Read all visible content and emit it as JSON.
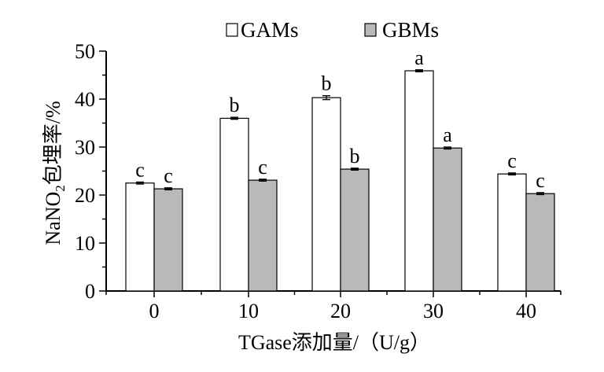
{
  "chart_data": {
    "type": "bar",
    "categories": [
      "0",
      "10",
      "20",
      "30",
      "40"
    ],
    "series": [
      {
        "name": "GAMs",
        "values": [
          22.5,
          36.0,
          40.3,
          45.9,
          24.4
        ],
        "errors": [
          0.2,
          0.2,
          0.4,
          0.2,
          0.2
        ],
        "labels": [
          "c",
          "b",
          "b",
          "a",
          "c"
        ],
        "color": "#ffffff"
      },
      {
        "name": "GBMs",
        "values": [
          21.3,
          23.1,
          25.4,
          29.8,
          20.3
        ],
        "errors": [
          0.2,
          0.2,
          0.2,
          0.2,
          0.2
        ],
        "labels": [
          "c",
          "c",
          "b",
          "a",
          "c"
        ],
        "color": "#b9b9b9"
      }
    ],
    "ylim": [
      0,
      50
    ],
    "yticks": [
      "0",
      "10",
      "20",
      "30",
      "40",
      "50"
    ],
    "ylabel_main": "NaNO",
    "ylabel_sub": "2",
    "ylabel_rest": "包埋率/%",
    "xlabel": "TGase添加量/（U/g）",
    "legend_position": "top",
    "grid": false
  }
}
